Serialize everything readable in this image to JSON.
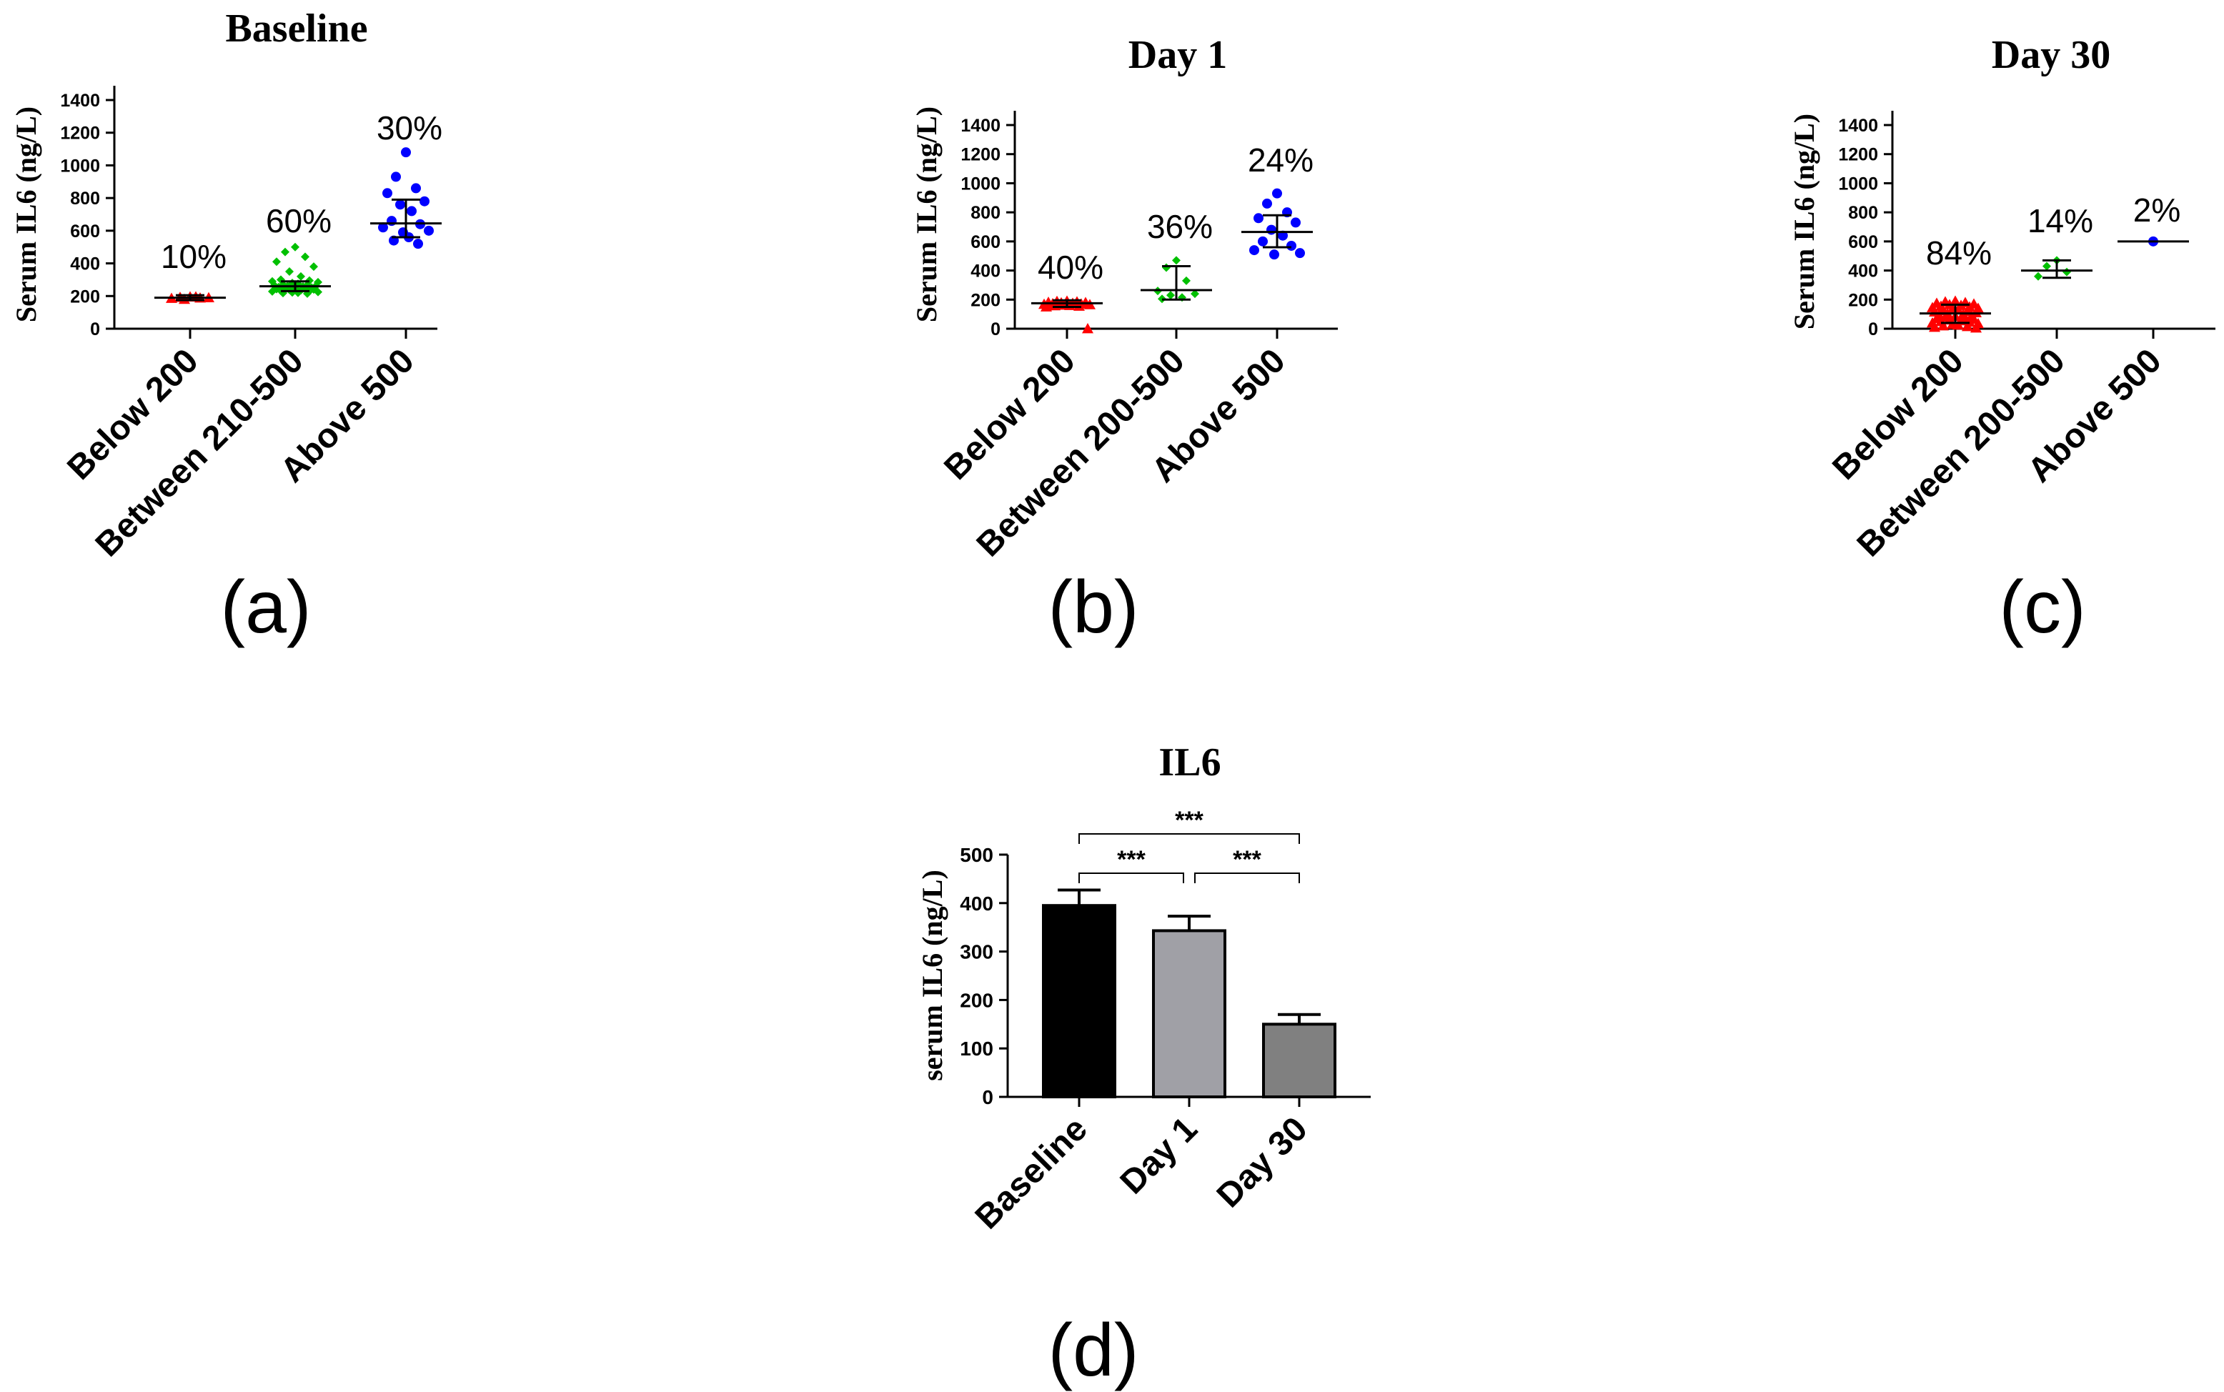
{
  "chart_data": [
    {
      "panel": "a",
      "panel_label": "(a)",
      "type": "scatter",
      "title": "Baseline",
      "ylabel": "Serum IL6  (ng/L)",
      "ylim": [
        0,
        1400
      ],
      "yticks": [
        "0",
        "200",
        "400",
        "600",
        "800",
        "1000",
        "1200",
        "1400"
      ],
      "categories": [
        "Below 200",
        "Between 210-500",
        "Above 500"
      ],
      "colors": [
        "#ff0000",
        "#00c000",
        "#0000ff"
      ],
      "markers": [
        "triangle",
        "diamond",
        "circle"
      ],
      "percent_labels": [
        "10%",
        "60%",
        "30%"
      ],
      "means": [
        190,
        260,
        645
      ],
      "error_low": [
        175,
        230,
        560
      ],
      "error_high": [
        205,
        290,
        790
      ],
      "points": [
        [
          195,
          192,
          188,
          186,
          190,
          180,
          195
        ],
        [
          500,
          470,
          440,
          410,
          380,
          350,
          320,
          300,
          295,
          290,
          285,
          280,
          275,
          270,
          268,
          265,
          262,
          260,
          258,
          255,
          252,
          250,
          248,
          245,
          242,
          240,
          238,
          235,
          232,
          230,
          228,
          225,
          222,
          220,
          218,
          215
        ],
        [
          1080,
          930,
          860,
          830,
          780,
          760,
          720,
          660,
          640,
          620,
          600,
          590,
          560,
          540,
          520
        ]
      ]
    },
    {
      "panel": "b",
      "panel_label": "(b)",
      "type": "scatter",
      "title": "Day 1",
      "ylabel": "Serum IL6  (ng/L)",
      "ylim": [
        0,
        1400
      ],
      "yticks": [
        "0",
        "200",
        "400",
        "600",
        "800",
        "1000",
        "1200",
        "1400"
      ],
      "categories": [
        "Below 200",
        "Between 200-500",
        "Above 500"
      ],
      "colors": [
        "#ff0000",
        "#00c000",
        "#0000ff"
      ],
      "markers": [
        "triangle",
        "diamond",
        "circle"
      ],
      "percent_labels": [
        "40%",
        "36%",
        "24%"
      ],
      "means": [
        175,
        265,
        665
      ],
      "error_low": [
        150,
        200,
        560
      ],
      "error_high": [
        195,
        430,
        780
      ],
      "points": [
        [
          190,
          188,
          185,
          182,
          180,
          178,
          175,
          172,
          170,
          168,
          165,
          162,
          160,
          158,
          155,
          150,
          0
        ],
        [
          470,
          420,
          330,
          260,
          240,
          230,
          215,
          205
        ],
        [
          930,
          860,
          800,
          760,
          730,
          680,
          640,
          600,
          570,
          540,
          520,
          510
        ]
      ]
    },
    {
      "panel": "c",
      "panel_label": "(c)",
      "type": "scatter",
      "title": "Day 30",
      "ylabel": "Serum IL6  (ng/L)",
      "ylim": [
        0,
        1400
      ],
      "yticks": [
        "0",
        "200",
        "400",
        "600",
        "800",
        "1000",
        "1200",
        "1400"
      ],
      "categories": [
        "Below 200",
        "Between 200-500",
        "Above 500"
      ],
      "colors": [
        "#ff0000",
        "#00c000",
        "#0000ff"
      ],
      "markers": [
        "triangle",
        "diamond",
        "circle"
      ],
      "percent_labels": [
        "84%",
        "14%",
        "2%"
      ],
      "means": [
        105,
        400,
        600
      ],
      "error_low": [
        40,
        350,
        600
      ],
      "error_high": [
        165,
        470,
        600
      ],
      "points": [
        [
          190,
          185,
          180,
          175,
          170,
          165,
          160,
          155,
          150,
          145,
          140,
          135,
          130,
          125,
          120,
          115,
          110,
          105,
          100,
          95,
          90,
          85,
          80,
          75,
          70,
          65,
          60,
          55,
          50,
          45,
          40,
          35,
          30,
          25,
          20,
          15,
          10,
          5
        ],
        [
          470,
          430,
          390,
          360
        ],
        [
          600
        ]
      ]
    },
    {
      "panel": "d",
      "panel_label": "(d)",
      "type": "bar",
      "title": "IL6",
      "ylabel": "serum IL6 (ng/L)",
      "ylim": [
        0,
        500
      ],
      "yticks": [
        "0",
        "100",
        "200",
        "300",
        "400",
        "500"
      ],
      "categories": [
        "Baseline",
        "Day 1",
        "Day 30"
      ],
      "values": [
        395,
        343,
        150
      ],
      "errors": [
        32,
        30,
        20
      ],
      "colors": [
        "#000000",
        "#a0a0a6",
        "#808080"
      ],
      "significance": [
        {
          "from": 0,
          "to": 1,
          "label": "***"
        },
        {
          "from": 1,
          "to": 2,
          "label": "***"
        },
        {
          "from": 0,
          "to": 2,
          "label": "***"
        }
      ]
    }
  ]
}
